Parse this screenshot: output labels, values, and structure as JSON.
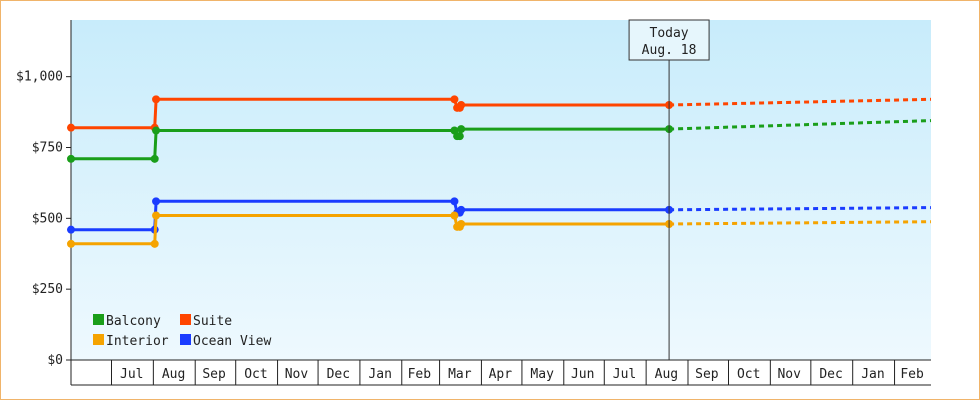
{
  "chart_data": {
    "type": "line",
    "title": "",
    "xlabel": "",
    "ylabel": "",
    "x_range": [
      "2016-06-01",
      "2018-02-28"
    ],
    "ylim": [
      0,
      1200
    ],
    "y_ticks": [
      {
        "value": 0,
        "label": "$0"
      },
      {
        "value": 250,
        "label": "$250"
      },
      {
        "value": 500,
        "label": "$500"
      },
      {
        "value": 750,
        "label": "$750"
      },
      {
        "value": 1000,
        "label": "$1,000"
      }
    ],
    "x_tick_labels": [
      {
        "label": "Jul",
        "date": "2016-07-16"
      },
      {
        "label": "Aug",
        "date": "2016-08-16"
      },
      {
        "label": "Sep",
        "date": "2016-09-15"
      },
      {
        "label": "Oct",
        "date": "2016-10-16"
      },
      {
        "label": "Nov",
        "date": "2016-11-15"
      },
      {
        "label": "Dec",
        "date": "2016-12-16"
      },
      {
        "label": "Jan",
        "date": "2017-01-16"
      },
      {
        "label": "Feb",
        "date": "2017-02-14"
      },
      {
        "label": "Mar",
        "date": "2017-03-16"
      },
      {
        "label": "Apr",
        "date": "2017-04-15"
      },
      {
        "label": "May",
        "date": "2017-05-16"
      },
      {
        "label": "Jun",
        "date": "2017-06-15"
      },
      {
        "label": "Jul",
        "date": "2017-07-16"
      },
      {
        "label": "Aug",
        "date": "2017-08-16"
      },
      {
        "label": "Sep",
        "date": "2017-09-15"
      },
      {
        "label": "Oct",
        "date": "2017-10-16"
      },
      {
        "label": "Nov",
        "date": "2017-11-15"
      },
      {
        "label": "Dec",
        "date": "2017-12-16"
      },
      {
        "label": "Jan",
        "date": "2018-01-16"
      },
      {
        "label": "Feb",
        "date": "2018-02-14"
      }
    ],
    "today": {
      "date": "2017-08-18",
      "line1": "Today",
      "line2": "Aug. 18"
    },
    "grid": false,
    "legend_position": "bottom-left",
    "series": [
      {
        "name": "Suite",
        "color": "#ff4500",
        "points": [
          {
            "date": "2016-06-01",
            "value": 820
          },
          {
            "date": "2016-08-02",
            "value": 820
          },
          {
            "date": "2016-08-03",
            "value": 920
          },
          {
            "date": "2017-03-12",
            "value": 920
          },
          {
            "date": "2017-03-14",
            "value": 890
          },
          {
            "date": "2017-03-16",
            "value": 890
          },
          {
            "date": "2017-03-17",
            "value": 900
          },
          {
            "date": "2017-08-18",
            "value": 900
          }
        ],
        "forecast": [
          {
            "date": "2017-08-18",
            "value": 900
          },
          {
            "date": "2018-02-28",
            "value": 920
          }
        ]
      },
      {
        "name": "Balcony",
        "color": "#1a9e1a",
        "points": [
          {
            "date": "2016-06-01",
            "value": 710
          },
          {
            "date": "2016-08-02",
            "value": 710
          },
          {
            "date": "2016-08-03",
            "value": 810
          },
          {
            "date": "2017-03-12",
            "value": 810
          },
          {
            "date": "2017-03-14",
            "value": 790
          },
          {
            "date": "2017-03-16",
            "value": 790
          },
          {
            "date": "2017-03-17",
            "value": 815
          },
          {
            "date": "2017-08-18",
            "value": 815
          }
        ],
        "forecast": [
          {
            "date": "2017-08-18",
            "value": 815
          },
          {
            "date": "2018-02-28",
            "value": 845
          }
        ]
      },
      {
        "name": "Ocean View",
        "color": "#1a3cff",
        "points": [
          {
            "date": "2016-06-01",
            "value": 460
          },
          {
            "date": "2016-08-02",
            "value": 460
          },
          {
            "date": "2016-08-03",
            "value": 560
          },
          {
            "date": "2017-03-12",
            "value": 560
          },
          {
            "date": "2017-03-14",
            "value": 520
          },
          {
            "date": "2017-03-16",
            "value": 520
          },
          {
            "date": "2017-03-17",
            "value": 530
          },
          {
            "date": "2017-08-18",
            "value": 530
          }
        ],
        "forecast": [
          {
            "date": "2017-08-18",
            "value": 530
          },
          {
            "date": "2018-02-28",
            "value": 538
          }
        ]
      },
      {
        "name": "Interior",
        "color": "#f5a300",
        "points": [
          {
            "date": "2016-06-01",
            "value": 410
          },
          {
            "date": "2016-08-02",
            "value": 410
          },
          {
            "date": "2016-08-03",
            "value": 510
          },
          {
            "date": "2017-03-12",
            "value": 510
          },
          {
            "date": "2017-03-14",
            "value": 470
          },
          {
            "date": "2017-03-16",
            "value": 470
          },
          {
            "date": "2017-03-17",
            "value": 480
          },
          {
            "date": "2017-08-18",
            "value": 480
          }
        ],
        "forecast": [
          {
            "date": "2017-08-18",
            "value": 480
          },
          {
            "date": "2018-02-28",
            "value": 488
          }
        ]
      }
    ],
    "legend": [
      {
        "name": "Balcony",
        "color": "#1a9e1a"
      },
      {
        "name": "Suite",
        "color": "#ff4500"
      },
      {
        "name": "Interior",
        "color": "#f5a300"
      },
      {
        "name": "Ocean View",
        "color": "#1a3cff"
      }
    ]
  }
}
